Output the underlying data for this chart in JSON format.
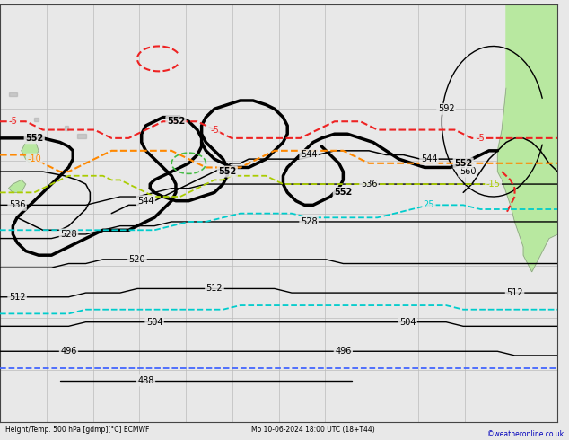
{
  "bg_color": "#e8e8e8",
  "land_color": "#b8e8a0",
  "land_border_color": "#888888",
  "grid_color": "#bbbbbb",
  "bottom_label": "Height/Temp. 500 hPa [gdmp][°C] ECMWF",
  "subtitle": "Mo 10-06-2024 18:00 UTC (18+T44)",
  "watermark": "©weatheronline.co.uk",
  "figsize": [
    6.34,
    4.9
  ],
  "dpi": 100,
  "xmin": 0,
  "xmax": 130,
  "ymin": 0,
  "ymax": 100,
  "colors": {
    "black": "#000000",
    "red": "#ee2222",
    "orange": "#ff8800",
    "yellow_green": "#aacc00",
    "green": "#44bb44",
    "cyan": "#00cccc",
    "blue": "#4466ff"
  }
}
